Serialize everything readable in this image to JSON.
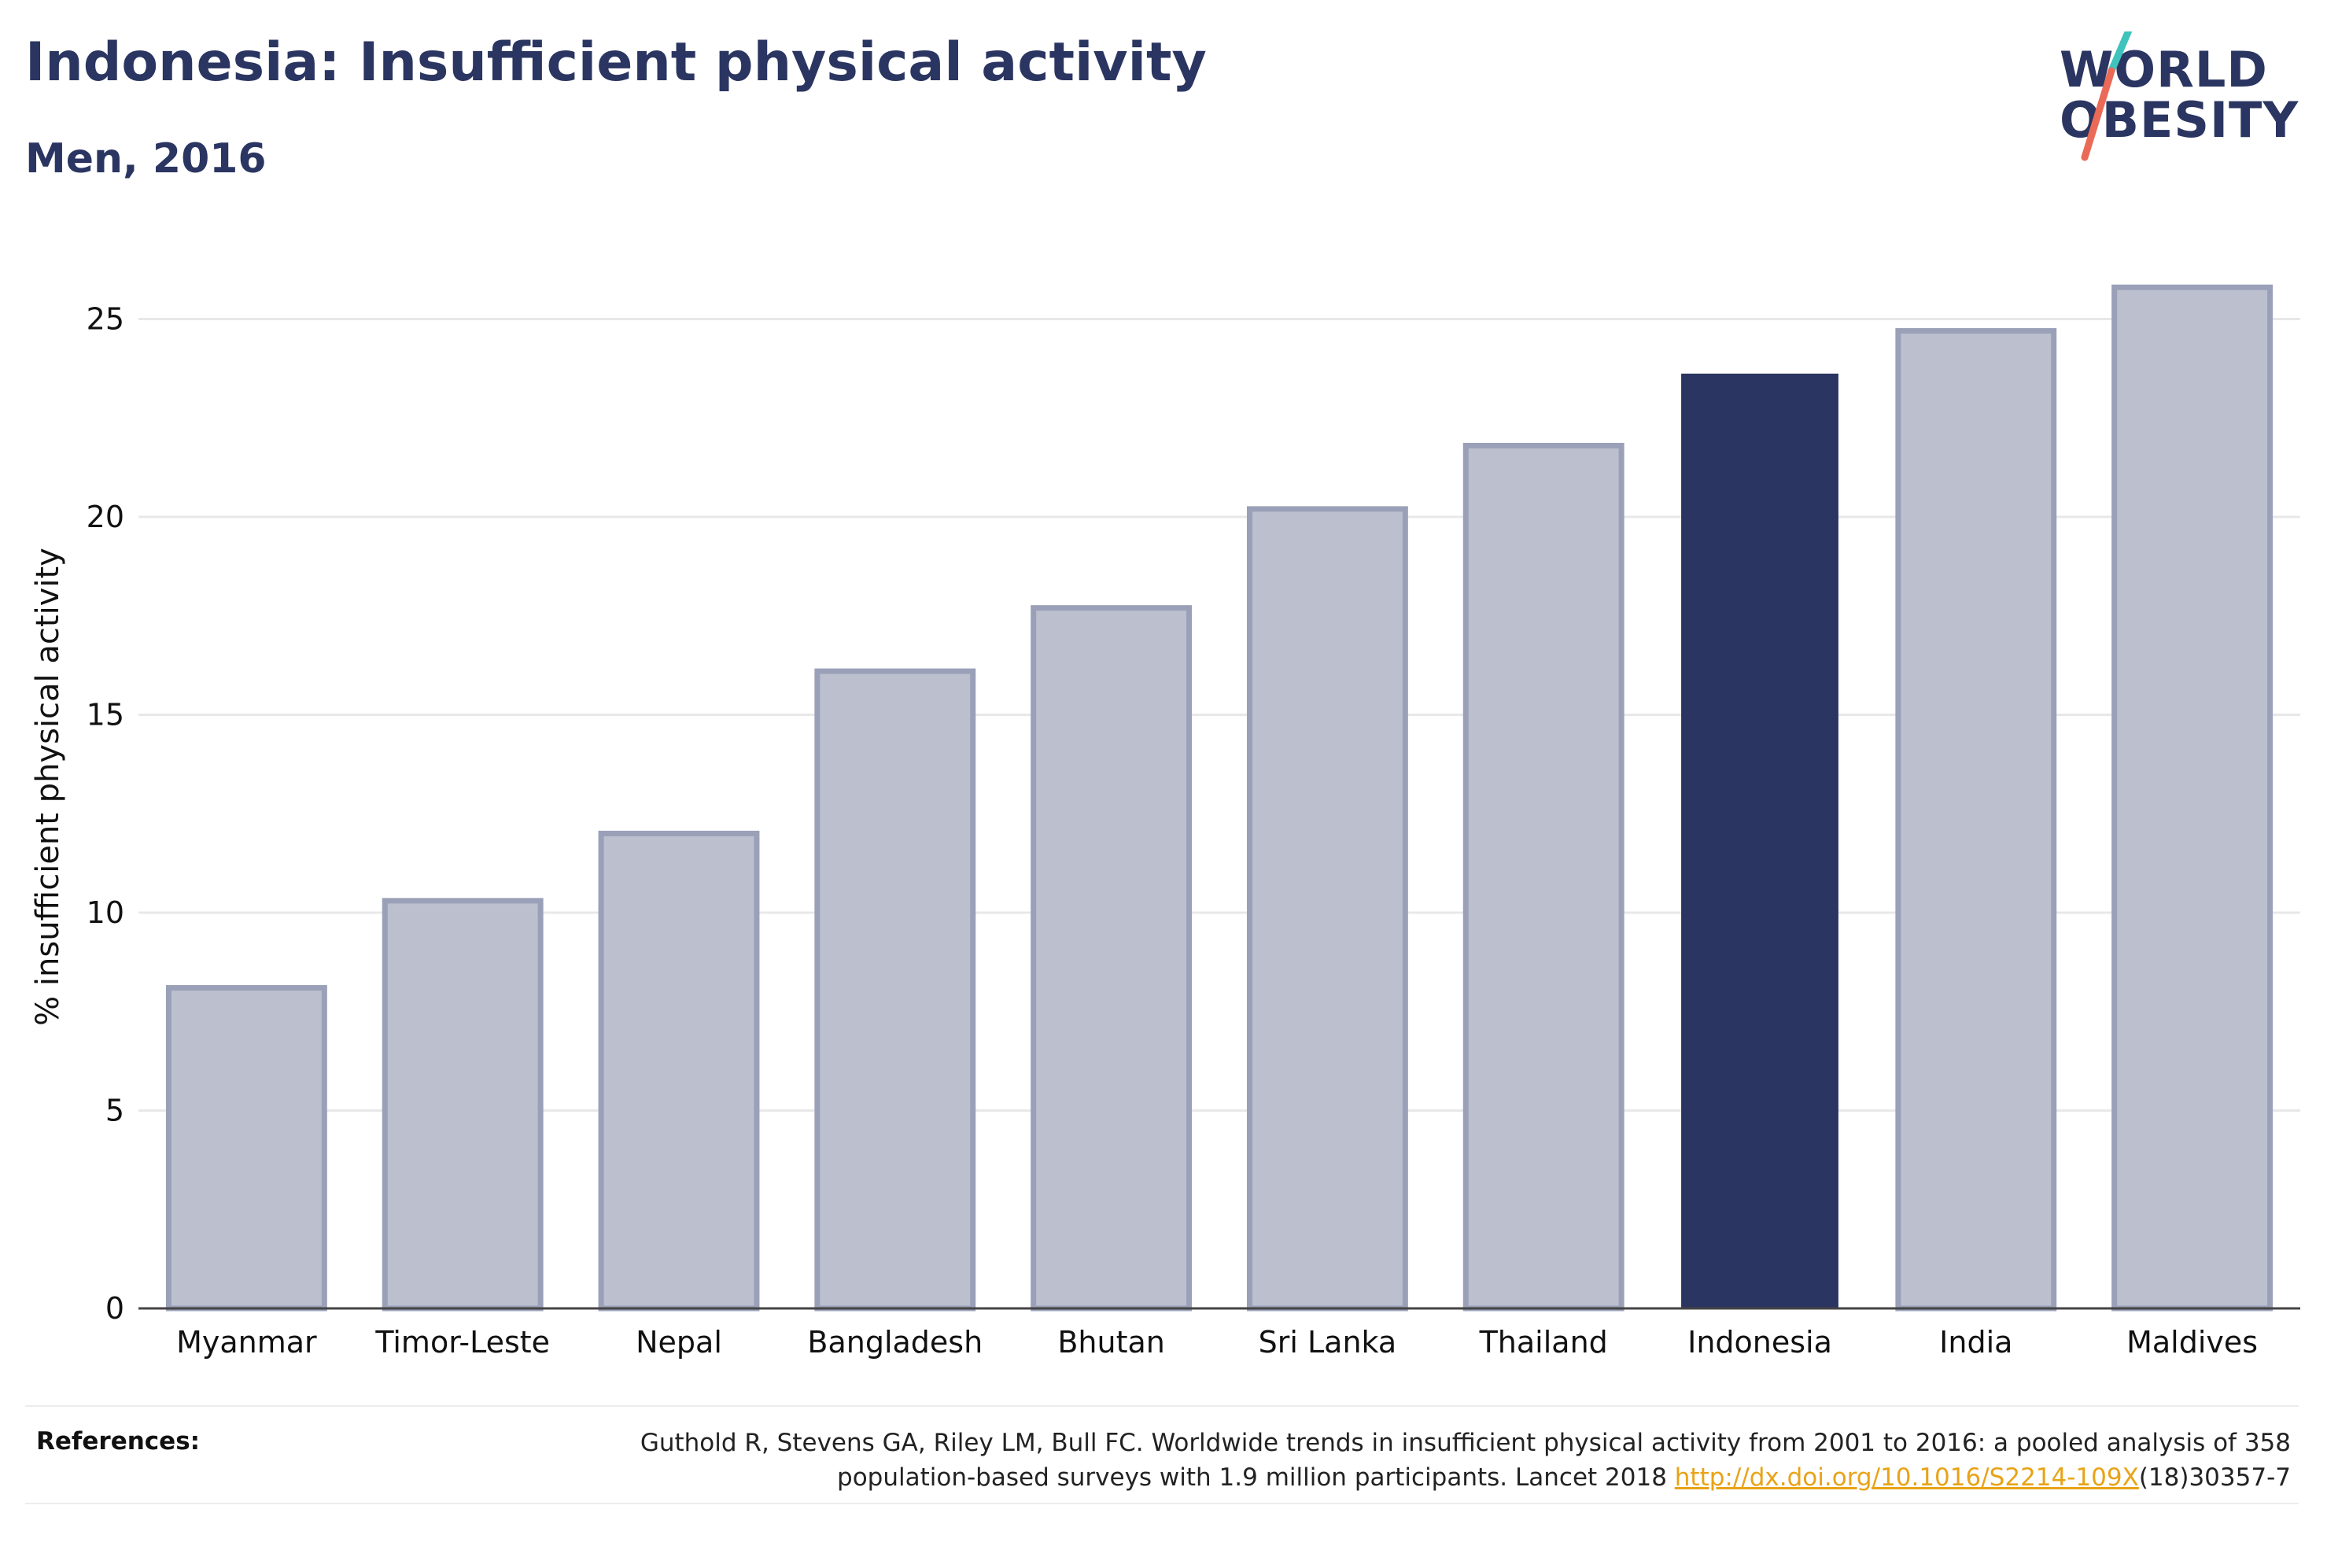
{
  "header": {
    "title": "Indonesia: Insufficient physical activity",
    "subtitle": "Men, 2016"
  },
  "logo": {
    "line1": "WORLD",
    "line2": "OBESITY",
    "slash_colors": [
      "#3ec3bd",
      "#ea6a57"
    ]
  },
  "colors": {
    "highlight": "#2b3561",
    "bar_fill": "#bcc0ce",
    "bar_stroke": "#9aa0b8",
    "grid": "#e8e8e8",
    "axis": "#444444"
  },
  "chart_data": {
    "type": "bar",
    "title": "Indonesia: Insufficient physical activity",
    "subtitle": "Men, 2016",
    "xlabel": "",
    "ylabel": "% insufficient physical activity",
    "categories": [
      "Myanmar",
      "Timor-Leste",
      "Nepal",
      "Bangladesh",
      "Bhutan",
      "Sri Lanka",
      "Thailand",
      "Indonesia",
      "India",
      "Maldives"
    ],
    "values": [
      8.1,
      10.3,
      12.0,
      16.1,
      17.7,
      20.2,
      21.8,
      23.6,
      24.7,
      25.8
    ],
    "highlight": "Indonesia",
    "ylim": [
      0,
      26.5
    ],
    "yticks": [
      0,
      5,
      10,
      15,
      20,
      25
    ],
    "grid": true
  },
  "references": {
    "label": "References:",
    "line1": "Guthold R, Stevens GA, Riley LM, Bull FC. Worldwide trends in insufficient physical activity from 2001 to 2016: a pooled analysis of 358",
    "line2_prefix": "population-based surveys with 1.9 million participants. Lancet 2018 ",
    "doi_link": "http://dx.doi.org/10.1016/S2214-109X",
    "line2_suffix": "(18)30357-7"
  }
}
